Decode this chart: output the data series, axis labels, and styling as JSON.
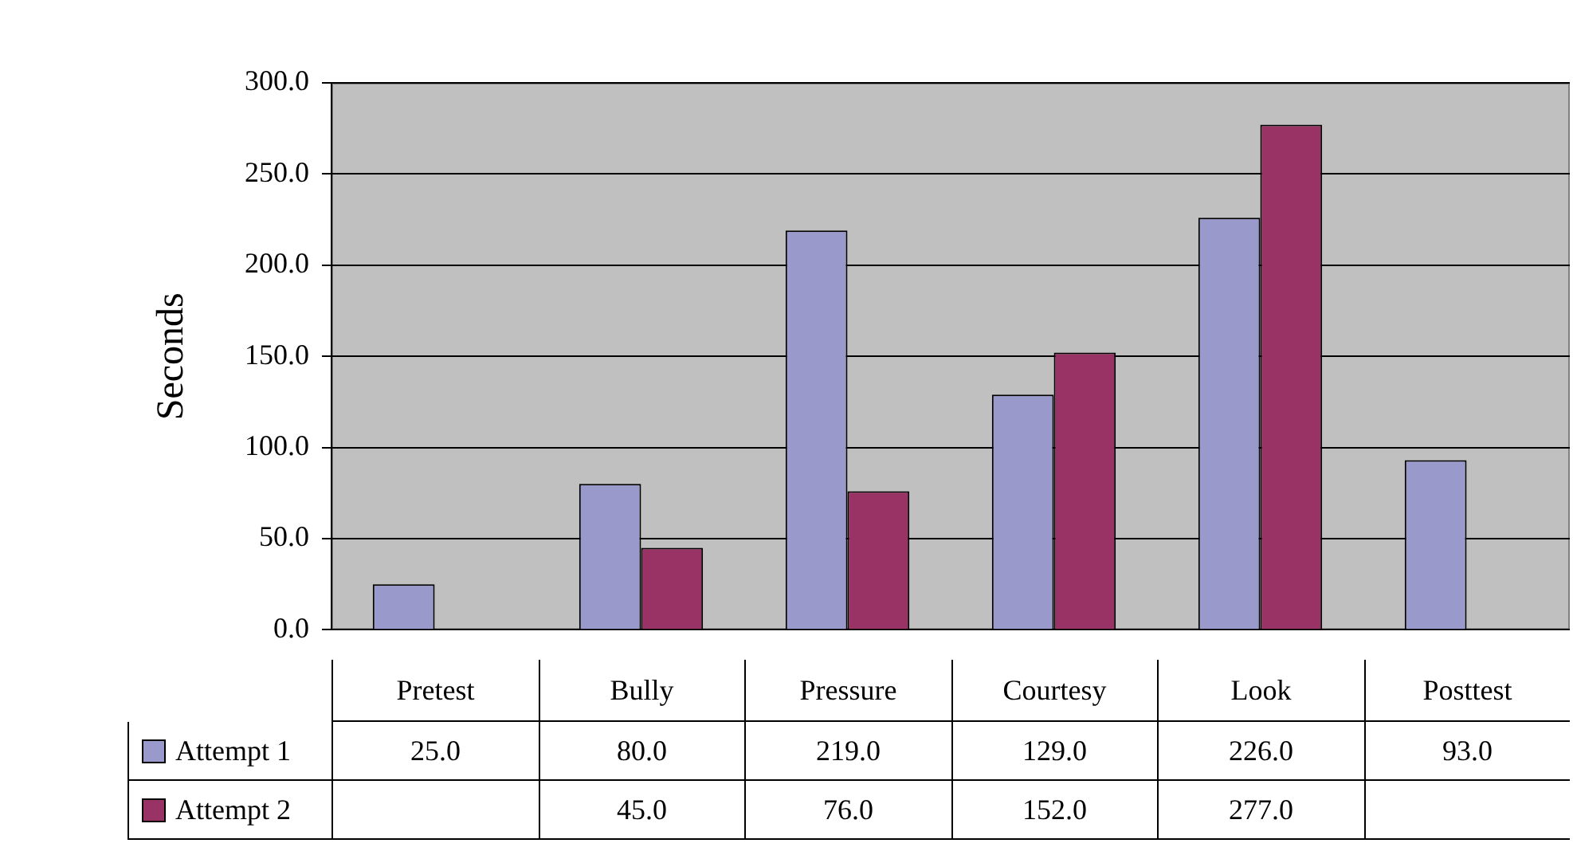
{
  "chart_data": {
    "type": "bar",
    "ylabel": "Seconds",
    "categories": [
      "Pretest",
      "Bully",
      "Pressure",
      "Courtesy",
      "Look",
      "Posttest"
    ],
    "series": [
      {
        "name": "Attempt 1",
        "color": "#9999cc",
        "values": [
          25,
          80,
          219,
          129,
          226,
          93
        ],
        "value_labels": [
          "25.0",
          "80.0",
          "219.0",
          "129.0",
          "226.0",
          "93.0"
        ]
      },
      {
        "name": "Attempt 2",
        "color": "#993366",
        "values": [
          null,
          45,
          76,
          152,
          277,
          null
        ],
        "value_labels": [
          null,
          "45.0",
          "76.0",
          "152.0",
          "277.0",
          null
        ]
      }
    ],
    "ylim": [
      0,
      300
    ],
    "yticks": [
      {
        "value": 0,
        "label": "0.0"
      },
      {
        "value": 50,
        "label": "50.0"
      },
      {
        "value": 100,
        "label": "100.0"
      },
      {
        "value": 150,
        "label": "150.0"
      },
      {
        "value": 200,
        "label": "200.0"
      },
      {
        "value": 250,
        "label": "250.0"
      },
      {
        "value": 300,
        "label": "300.0"
      }
    ],
    "grid": "y",
    "legend": "bottom left"
  }
}
